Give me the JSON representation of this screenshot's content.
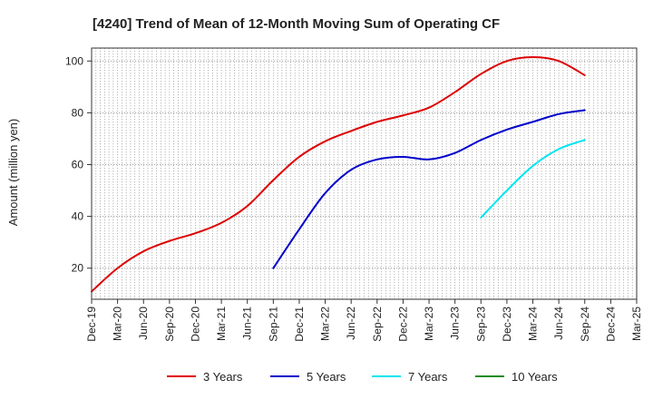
{
  "chart_data": {
    "type": "line",
    "title": "[4240]  Trend of Mean of 12-Month Moving Sum of Operating CF",
    "ylabel": "Amount (million yen)",
    "xlabel": "",
    "ylim": [
      8,
      105
    ],
    "yticks": [
      20,
      40,
      60,
      80,
      100
    ],
    "categories": [
      "Dec-19",
      "Mar-20",
      "Jun-20",
      "Sep-20",
      "Dec-20",
      "Mar-21",
      "Jun-21",
      "Sep-21",
      "Dec-21",
      "Mar-22",
      "Jun-22",
      "Sep-22",
      "Dec-22",
      "Mar-23",
      "Jun-23",
      "Sep-23",
      "Dec-23",
      "Mar-24",
      "Jun-24",
      "Sep-24",
      "Dec-24",
      "Mar-25"
    ],
    "grid": true,
    "legend_position": "bottom",
    "series": [
      {
        "name": "3 Years",
        "color": "#dd0000",
        "values": [
          11,
          20,
          26.5,
          30.5,
          33.5,
          37.5,
          44,
          54,
          63,
          69,
          73,
          76.5,
          79,
          82,
          88,
          95,
          100,
          101.5,
          100,
          94.5,
          null,
          null
        ]
      },
      {
        "name": "5 Years",
        "color": "#0000cc",
        "values": [
          null,
          null,
          null,
          null,
          null,
          null,
          null,
          20,
          35,
          49,
          58,
          62,
          63,
          62,
          64.5,
          69.5,
          73.5,
          76.5,
          79.5,
          81,
          null,
          null
        ]
      },
      {
        "name": "7 Years",
        "color": "#00e5ee",
        "values": [
          null,
          null,
          null,
          null,
          null,
          null,
          null,
          null,
          null,
          null,
          null,
          null,
          null,
          null,
          null,
          39.5,
          50,
          59.5,
          66,
          69.5,
          null,
          null
        ]
      },
      {
        "name": "10 Years",
        "color": "#228b22",
        "values": [
          null,
          null,
          null,
          null,
          null,
          null,
          null,
          null,
          null,
          null,
          null,
          null,
          null,
          null,
          null,
          null,
          null,
          null,
          null,
          null,
          null,
          null
        ]
      }
    ]
  }
}
